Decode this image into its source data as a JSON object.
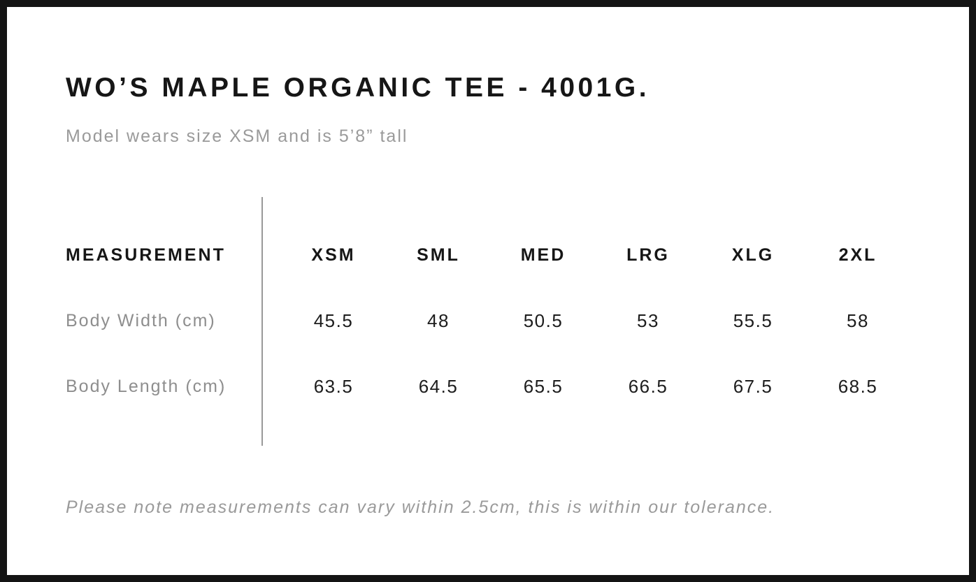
{
  "page": {
    "title": "WO’S MAPLE ORGANIC TEE - 4001G.",
    "subtitle": "Model wears size XSM and is 5’8” tall",
    "note": "Please note measurements can vary within 2.5cm, this is within our tolerance."
  },
  "table": {
    "measurement_header": "MEASUREMENT",
    "sizes": [
      "XSM",
      "SML",
      "MED",
      "LRG",
      "XLG",
      "2XL"
    ],
    "rows": [
      {
        "label": "Body Width (cm)",
        "values": [
          "45.5",
          "48",
          "50.5",
          "53",
          "55.5",
          "58"
        ]
      },
      {
        "label": "Body Length (cm)",
        "values": [
          "63.5",
          "64.5",
          "65.5",
          "66.5",
          "67.5",
          "68.5"
        ]
      }
    ]
  },
  "chart_data": {
    "type": "table",
    "title": "WO’S MAPLE ORGANIC TEE - 4001G.",
    "columns": [
      "MEASUREMENT",
      "XSM",
      "SML",
      "MED",
      "LRG",
      "XLG",
      "2XL"
    ],
    "rows": [
      [
        "Body Width (cm)",
        45.5,
        48,
        50.5,
        53,
        55.5,
        58
      ],
      [
        "Body Length (cm)",
        63.5,
        64.5,
        65.5,
        66.5,
        67.5,
        68.5
      ]
    ]
  },
  "colors": {
    "text": "#161616",
    "muted_gray": "#9a9a9a",
    "label_gray": "#8e8e8e",
    "divider_gray": "#999999",
    "frame_black": "#141414"
  }
}
